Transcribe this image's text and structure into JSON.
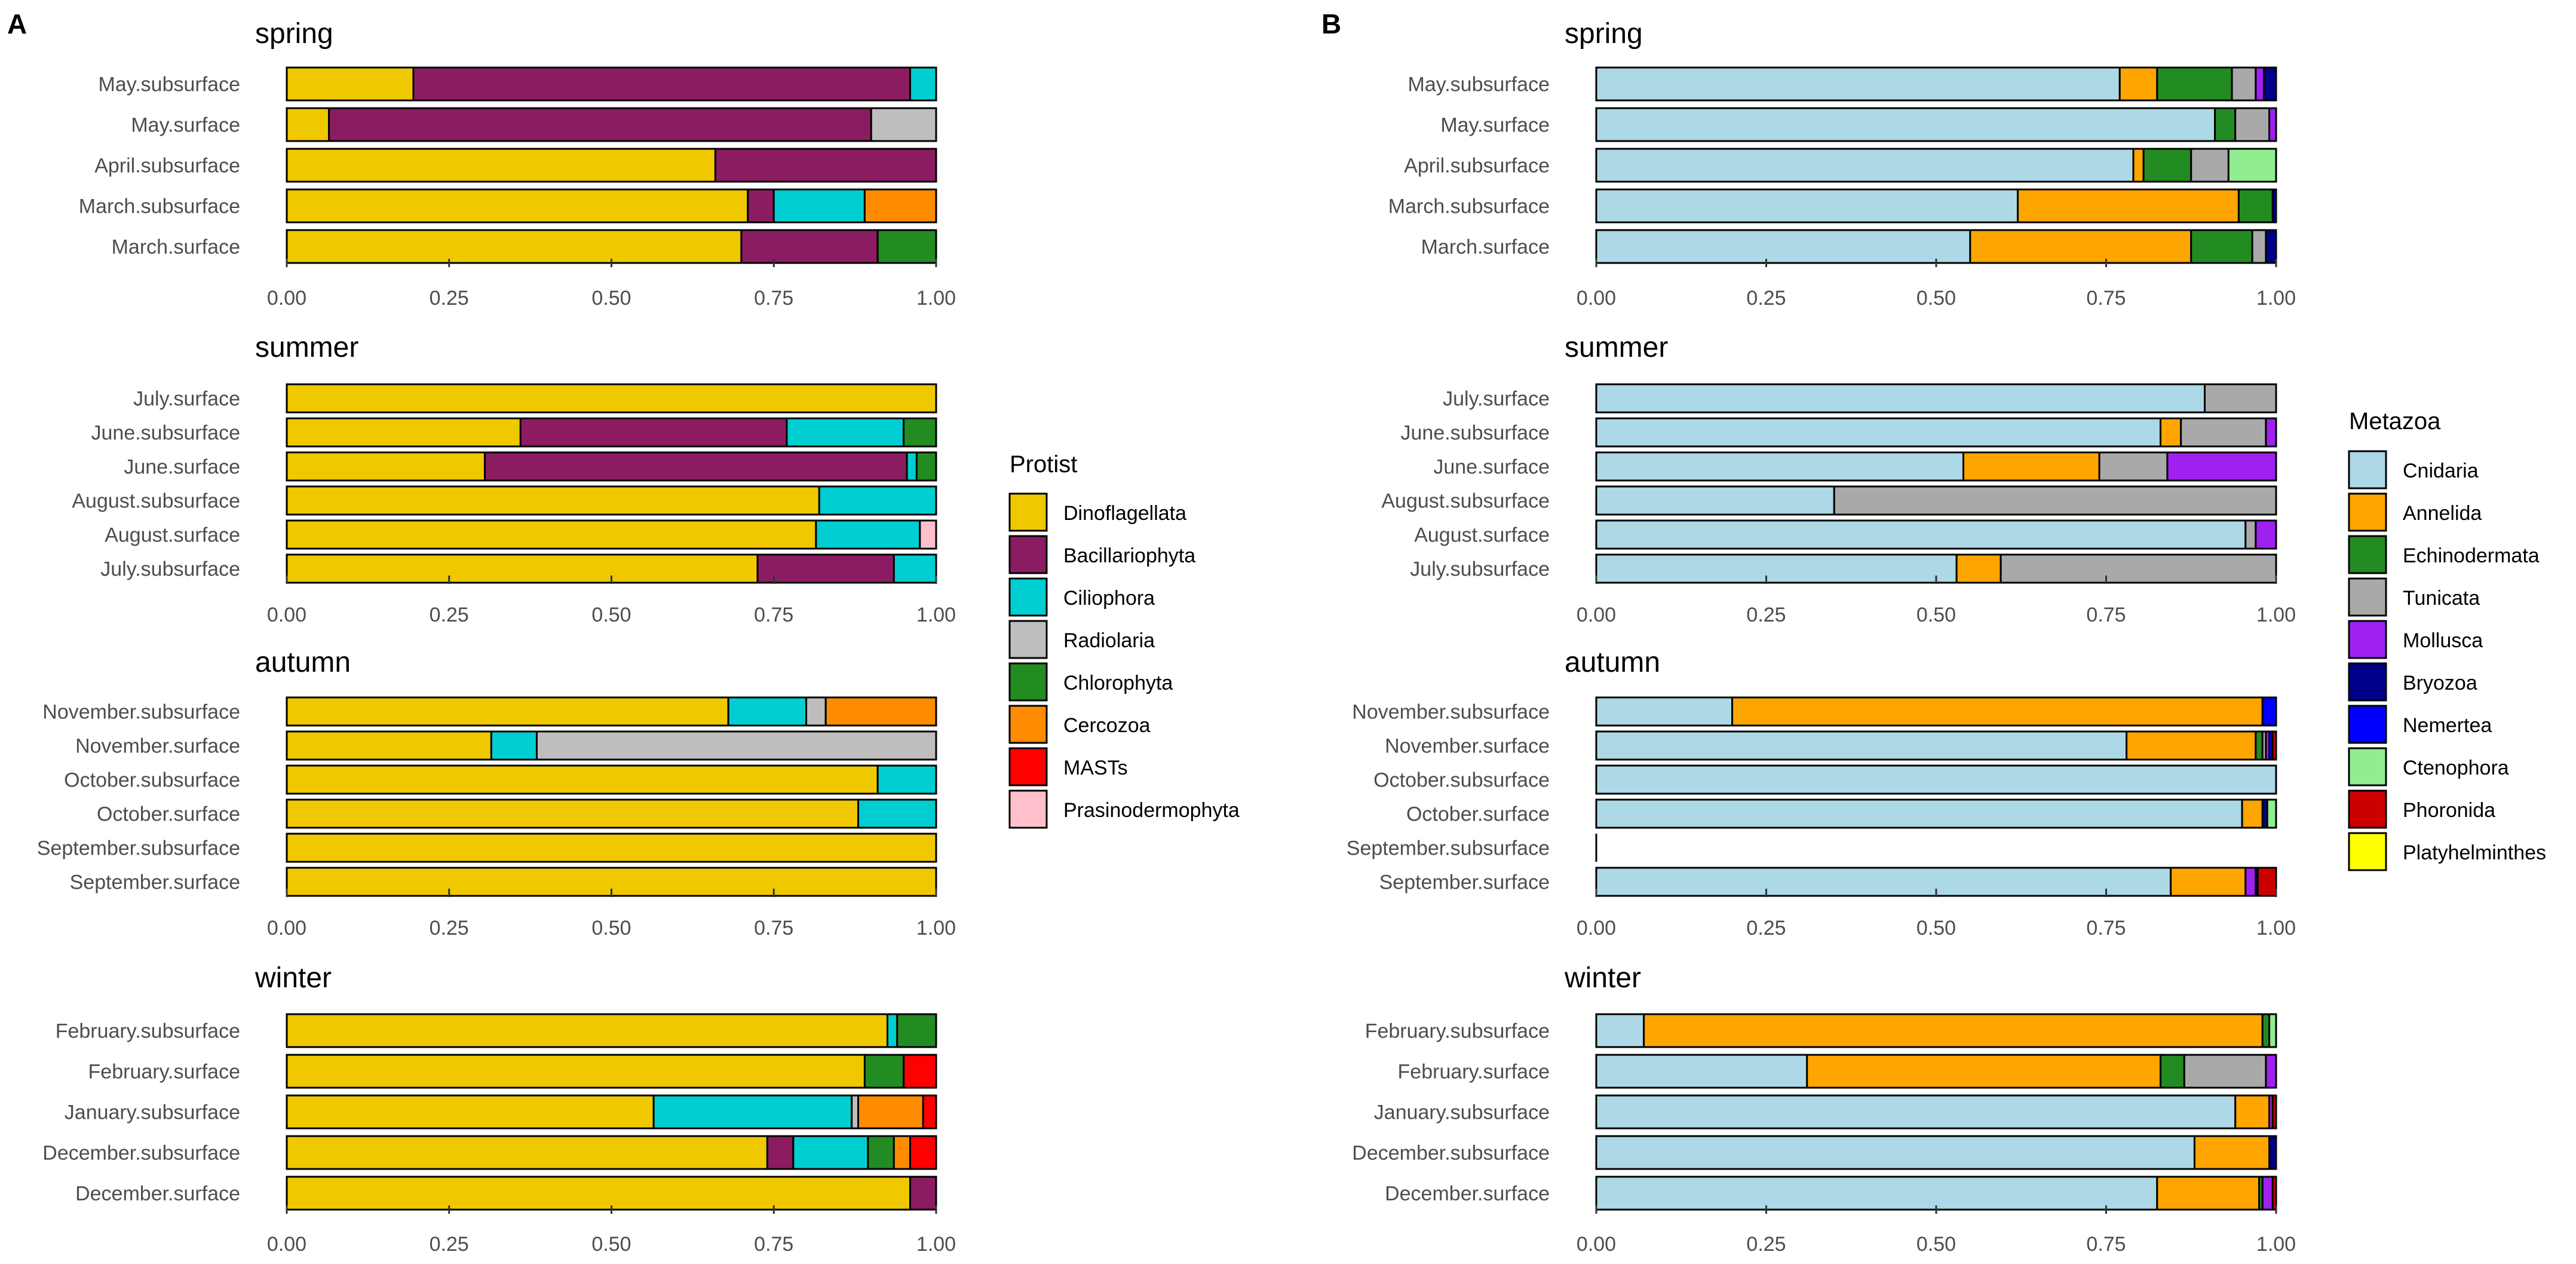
{
  "panels": [
    {
      "label": "A",
      "legend_title": "Protist"
    },
    {
      "label": "B",
      "legend_title": "Metazoa"
    }
  ],
  "legends": [
    {
      "title": "Protist",
      "entries": [
        {
          "name": "Dinoflagellata",
          "color": "#F0C800"
        },
        {
          "name": "Bacillariophyta",
          "color": "#8B1C62"
        },
        {
          "name": "Ciliophora",
          "color": "#00CED1"
        },
        {
          "name": "Radiolaria",
          "color": "#BEBEBE"
        },
        {
          "name": "Chlorophyta",
          "color": "#228B22"
        },
        {
          "name": "Cercozoa",
          "color": "#FF8C00"
        },
        {
          "name": "MASTs",
          "color": "#FF0000"
        },
        {
          "name": "Prasinodermophyta",
          "color": "#FFC0CB"
        }
      ]
    },
    {
      "title": "Metazoa",
      "entries": [
        {
          "name": "Cnidaria",
          "color": "#ADD8E6"
        },
        {
          "name": "Annelida",
          "color": "#FFA500"
        },
        {
          "name": "Echinodermata",
          "color": "#228B22"
        },
        {
          "name": "Tunicata",
          "color": "#A9A9A9"
        },
        {
          "name": "Mollusca",
          "color": "#A020F0"
        },
        {
          "name": "Bryozoa",
          "color": "#00008B"
        },
        {
          "name": "Nemertea",
          "color": "#0000FF"
        },
        {
          "name": "Ctenophora",
          "color": "#90EE90"
        },
        {
          "name": "Phoronida",
          "color": "#CD0000"
        },
        {
          "name": "Platyhelminthes",
          "color": "#FFFF00"
        }
      ]
    }
  ],
  "chart_data": [
    {
      "type": "bar",
      "orientation": "horizontal",
      "stacked": true,
      "panel": "A",
      "title": "spring",
      "xlim": [
        0,
        1
      ],
      "x_ticks": [
        "0.00",
        "0.25",
        "0.50",
        "0.75",
        "1.00"
      ],
      "categories": [
        "May.subsurface",
        "May.surface",
        "April.subsurface",
        "March.subsurface",
        "March.surface"
      ],
      "series": [
        {
          "name": "Dinoflagellata",
          "values": [
            0.195,
            0.065,
            0.66,
            0.71,
            0.7
          ]
        },
        {
          "name": "Bacillariophyta",
          "values": [
            0.765,
            0.835,
            0.34,
            0.04,
            0.21
          ]
        },
        {
          "name": "Ciliophora",
          "values": [
            0.04,
            0,
            0,
            0.14,
            0
          ]
        },
        {
          "name": "Radiolaria",
          "values": [
            0,
            0.1,
            0,
            0,
            0
          ]
        },
        {
          "name": "Chlorophyta",
          "values": [
            0,
            0,
            0,
            0,
            0.09
          ]
        },
        {
          "name": "Cercozoa",
          "values": [
            0,
            0,
            0,
            0.11,
            0
          ]
        }
      ]
    },
    {
      "type": "bar",
      "orientation": "horizontal",
      "stacked": true,
      "panel": "A",
      "title": "summer",
      "xlim": [
        0,
        1
      ],
      "x_ticks": [
        "0.00",
        "0.25",
        "0.50",
        "0.75",
        "1.00"
      ],
      "categories": [
        "July.surface",
        "June.subsurface",
        "June.surface",
        "August.subsurface",
        "August.surface",
        "July.subsurface"
      ],
      "series": [
        {
          "name": "Dinoflagellata",
          "values": [
            1.0,
            0.36,
            0.305,
            0.82,
            0.815,
            0.725
          ]
        },
        {
          "name": "Bacillariophyta",
          "values": [
            0,
            0.41,
            0.65,
            0,
            0,
            0.21
          ]
        },
        {
          "name": "Ciliophora",
          "values": [
            0,
            0.18,
            0.015,
            0.18,
            0.16,
            0.065
          ]
        },
        {
          "name": "Chlorophyta",
          "values": [
            0,
            0.05,
            0.03,
            0,
            0,
            0
          ]
        },
        {
          "name": "Prasinodermophyta",
          "values": [
            0,
            0,
            0,
            0,
            0.025,
            0
          ]
        }
      ]
    },
    {
      "type": "bar",
      "orientation": "horizontal",
      "stacked": true,
      "panel": "A",
      "title": "autumn",
      "xlim": [
        0,
        1
      ],
      "x_ticks": [
        "0.00",
        "0.25",
        "0.50",
        "0.75",
        "1.00"
      ],
      "categories": [
        "November.subsurface",
        "November.surface",
        "October.subsurface",
        "October.surface",
        "September.subsurface",
        "September.surface"
      ],
      "series": [
        {
          "name": "Dinoflagellata",
          "values": [
            0.68,
            0.315,
            0.91,
            0.88,
            1.0,
            1.0
          ]
        },
        {
          "name": "Ciliophora",
          "values": [
            0.12,
            0.07,
            0.09,
            0.12,
            0,
            0
          ]
        },
        {
          "name": "Radiolaria",
          "values": [
            0.03,
            0.615,
            0,
            0,
            0,
            0
          ]
        },
        {
          "name": "Cercozoa",
          "values": [
            0.17,
            0,
            0,
            0,
            0,
            0
          ]
        }
      ]
    },
    {
      "type": "bar",
      "orientation": "horizontal",
      "stacked": true,
      "panel": "A",
      "title": "winter",
      "xlim": [
        0,
        1
      ],
      "x_ticks": [
        "0.00",
        "0.25",
        "0.50",
        "0.75",
        "1.00"
      ],
      "categories": [
        "February.subsurface",
        "February.surface",
        "January.subsurface",
        "December.subsurface",
        "December.surface"
      ],
      "series": [
        {
          "name": "Dinoflagellata",
          "values": [
            0.925,
            0.89,
            0.565,
            0.74,
            0.96
          ]
        },
        {
          "name": "Bacillariophyta",
          "values": [
            0,
            0,
            0,
            0.04,
            0.04
          ]
        },
        {
          "name": "Ciliophora",
          "values": [
            0.015,
            0,
            0.305,
            0.115,
            0
          ]
        },
        {
          "name": "Radiolaria",
          "values": [
            0,
            0,
            0.01,
            0,
            0
          ]
        },
        {
          "name": "Chlorophyta",
          "values": [
            0.06,
            0.06,
            0,
            0.04,
            0
          ]
        },
        {
          "name": "Cercozoa",
          "values": [
            0,
            0,
            0.1,
            0.025,
            0
          ]
        },
        {
          "name": "MASTs",
          "values": [
            0,
            0.05,
            0.02,
            0.04,
            0
          ]
        }
      ]
    },
    {
      "type": "bar",
      "orientation": "horizontal",
      "stacked": true,
      "panel": "B",
      "title": "spring",
      "xlim": [
        0,
        1
      ],
      "x_ticks": [
        "0.00",
        "0.25",
        "0.50",
        "0.75",
        "1.00"
      ],
      "categories": [
        "May.subsurface",
        "May.surface",
        "April.subsurface",
        "March.subsurface",
        "March.surface"
      ],
      "series": [
        {
          "name": "Cnidaria",
          "values": [
            0.77,
            0.91,
            0.79,
            0.62,
            0.55
          ]
        },
        {
          "name": "Annelida",
          "values": [
            0.055,
            0,
            0.015,
            0.325,
            0.325
          ]
        },
        {
          "name": "Echinodermata",
          "values": [
            0.11,
            0.03,
            0.07,
            0.05,
            0.09
          ]
        },
        {
          "name": "Tunicata",
          "values": [
            0.035,
            0.05,
            0.055,
            0,
            0.02
          ]
        },
        {
          "name": "Mollusca",
          "values": [
            0.012,
            0.01,
            0,
            0,
            0
          ]
        },
        {
          "name": "Bryozoa",
          "values": [
            0.018,
            0,
            0,
            0.005,
            0.015
          ]
        },
        {
          "name": "Ctenophora",
          "values": [
            0,
            0,
            0.07,
            0,
            0
          ]
        }
      ]
    },
    {
      "type": "bar",
      "orientation": "horizontal",
      "stacked": true,
      "panel": "B",
      "title": "summer",
      "xlim": [
        0,
        1
      ],
      "x_ticks": [
        "0.00",
        "0.25",
        "0.50",
        "0.75",
        "1.00"
      ],
      "categories": [
        "July.surface",
        "June.subsurface",
        "June.surface",
        "August.subsurface",
        "August.surface",
        "July.subsurface"
      ],
      "series": [
        {
          "name": "Cnidaria",
          "values": [
            0.895,
            0.83,
            0.54,
            0.35,
            0.955,
            0.53
          ]
        },
        {
          "name": "Annelida",
          "values": [
            0,
            0.03,
            0.2,
            0,
            0,
            0.065
          ]
        },
        {
          "name": "Tunicata",
          "values": [
            0.105,
            0.125,
            0.1,
            0.65,
            0.015,
            0.405
          ]
        },
        {
          "name": "Mollusca",
          "values": [
            0,
            0.015,
            0.16,
            0,
            0.03,
            0
          ]
        }
      ]
    },
    {
      "type": "bar",
      "orientation": "horizontal",
      "stacked": true,
      "panel": "B",
      "title": "autumn",
      "xlim": [
        0,
        1
      ],
      "x_ticks": [
        "0.00",
        "0.25",
        "0.50",
        "0.75",
        "1.00"
      ],
      "categories": [
        "November.subsurface",
        "November.surface",
        "October.subsurface",
        "October.surface",
        "September.subsurface",
        "September.surface"
      ],
      "series": [
        {
          "name": "Cnidaria",
          "values": [
            0.2,
            0.78,
            1.0,
            0.95,
            0,
            0.845
          ]
        },
        {
          "name": "Annelida",
          "values": [
            0.78,
            0.19,
            0,
            0.03,
            0,
            0.11
          ]
        },
        {
          "name": "Echinodermata",
          "values": [
            0,
            0.01,
            0,
            0,
            0,
            0
          ]
        },
        {
          "name": "Tunicata",
          "values": [
            0,
            0.005,
            0,
            0,
            0,
            0
          ]
        },
        {
          "name": "Mollusca",
          "values": [
            0,
            0.005,
            0,
            0,
            0,
            0.015
          ]
        },
        {
          "name": "Bryozoa",
          "values": [
            0,
            0,
            0,
            0.007,
            0,
            0
          ]
        },
        {
          "name": "Nemertea",
          "values": [
            0.02,
            0.005,
            0,
            0,
            0,
            0.003
          ]
        },
        {
          "name": "Ctenophora",
          "values": [
            0,
            0,
            0,
            0.013,
            0,
            0
          ]
        },
        {
          "name": "Phoronida",
          "values": [
            0,
            0.005,
            0,
            0,
            0,
            0.027
          ]
        }
      ]
    },
    {
      "type": "bar",
      "orientation": "horizontal",
      "stacked": true,
      "panel": "B",
      "title": "winter",
      "xlim": [
        0,
        1
      ],
      "x_ticks": [
        "0.00",
        "0.25",
        "0.50",
        "0.75",
        "1.00"
      ],
      "categories": [
        "February.subsurface",
        "February.surface",
        "January.subsurface",
        "December.subsurface",
        "December.surface"
      ],
      "series": [
        {
          "name": "Cnidaria",
          "values": [
            0.07,
            0.31,
            0.94,
            0.88,
            0.825
          ]
        },
        {
          "name": "Annelida",
          "values": [
            0.91,
            0.52,
            0.05,
            0.11,
            0.15
          ]
        },
        {
          "name": "Echinodermata",
          "values": [
            0.01,
            0.035,
            0,
            0,
            0.005
          ]
        },
        {
          "name": "Tunicata",
          "values": [
            0,
            0.12,
            0,
            0,
            0
          ]
        },
        {
          "name": "Mollusca",
          "values": [
            0,
            0.015,
            0.005,
            0,
            0.015
          ]
        },
        {
          "name": "Bryozoa",
          "values": [
            0,
            0,
            0,
            0.01,
            0
          ]
        },
        {
          "name": "Ctenophora",
          "values": [
            0.01,
            0,
            0,
            0,
            0
          ]
        },
        {
          "name": "Phoronida",
          "values": [
            0,
            0,
            0.005,
            0,
            0.005
          ]
        }
      ]
    }
  ]
}
